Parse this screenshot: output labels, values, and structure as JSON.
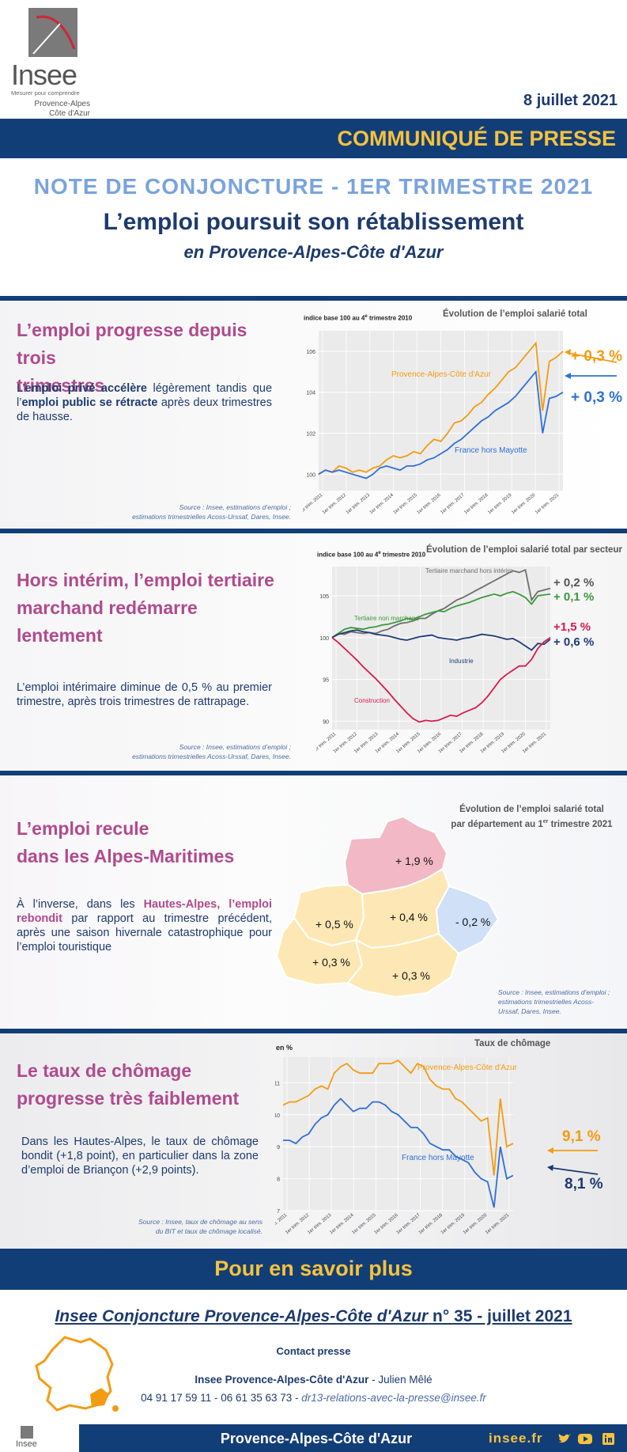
{
  "header": {
    "logo_word": "Insee",
    "logo_tagline": "Mesurer pour comprendre",
    "logo_region_line1": "Provence-Alpes",
    "logo_region_line2": "Côte d'Azur",
    "date": "8 juillet 2021",
    "press_release": "COMMUNIQUÉ DE PRESSE",
    "note_title": "NOTE DE CONJONCTURE - 1ER TRIMESTRE 2021",
    "main_title": "L’emploi poursuit son rétablissement",
    "main_subtitle": "en Provence-Alpes-Côte d'Azur"
  },
  "colors": {
    "navy": "#123e78",
    "yellow": "#f6c23d",
    "orange": "#f39c12",
    "blue_line": "#2f6fd6",
    "pink_title": "#b04a8e"
  },
  "section1": {
    "title_line1": "L’emploi progresse depuis trois",
    "title_line2": "trimestres",
    "text_part1": "L’",
    "text_bold1": "emploi privé accélère",
    "text_part2": " légèrement tandis que l’",
    "text_bold2": "emploi public se rétracte",
    "text_part3": " après deux trimestres de hausse.",
    "source_line1": "Source : Insee, estimations d’emploi ;",
    "source_line2": "estimations trimestrielles Acoss-Urssaf, Dares, Insee."
  },
  "section2": {
    "title_line1": "Hors intérim, l’emploi tertiaire",
    "title_line2": "marchand redémarre",
    "title_line3": "lentement",
    "text": "L’emploi intérimaire diminue de 0,5 % au premier trimestre, après trois trimestres de rattrapage.",
    "source_line1": "Source : Insee, estimations d’emploi ;",
    "source_line2": "estimations trimestrielles Acoss-Urssaf, Dares, Insee."
  },
  "section3": {
    "title_line1": "L’emploi recule",
    "title_line2": "dans les Alpes-Maritimes",
    "text_part1": "À l’inverse, dans les ",
    "text_bold": "Hautes-Alpes, l’emploi rebondit",
    "text_part2": " par rapport au trimestre précédent, après une saison hivernale catastrophique pour l’emploi touristique",
    "map_title_line1": "Évolution de l’emploi salarié total",
    "map_title_line2": "par département au 1",
    "map_title_sup": "er",
    "map_title_line2b": " trimestre 2021",
    "labels": {
      "hautes_alpes": "+ 1,9 %",
      "vaucluse": "+ 0,5 %",
      "alpes_hp": "+ 0,4 %",
      "alpes_maritimes": "- 0,2 %",
      "bouches_du_rhone": "+ 0,3 %",
      "var": "+ 0,3 %"
    },
    "source_line1": "Source : Insee, estimations d’emploi ;",
    "source_line2": "estimations trimestrielles Acoss-",
    "source_line3": "Urssaf, Dares, Insee."
  },
  "section4": {
    "title_line1": "Le taux de chômage",
    "title_line2": "progresse très faiblement",
    "text": "Dans les Hautes-Alpes, le taux de chômage bondit (+1,8 point), en particulier dans la zone d’emploi de Briançon (+2,9 points).",
    "source_line1": "Source : Insee, taux de chômage au sens",
    "source_line2": "du BIT et taux de chômage localisé."
  },
  "tick_labels": [
    "1er trim. 2011",
    "1er trim. 2012",
    "1er trim. 2013",
    "1er trim. 2014",
    "1er trim. 2015",
    "1er trim. 2016",
    "1er trim. 2017",
    "1er trim. 2018",
    "1er trim. 2019",
    "1er trim. 2020",
    "1er trim. 2021"
  ],
  "chart_data": [
    {
      "type": "line",
      "title": "Évolution de l’emploi salarié total",
      "ylabel": "indice base 100 au 4e trimestre 2010",
      "ylim": [
        99.2,
        107.0
      ],
      "yticks": [
        100,
        102,
        104,
        106
      ],
      "series": [
        {
          "name": "Provence-Alpes-Côte d'Azur",
          "color": "#f39c12",
          "end_label": "+ 0,3 %",
          "values": [
            100.0,
            100.2,
            100.1,
            100.4,
            100.3,
            100.1,
            100.2,
            100.1,
            100.3,
            100.4,
            100.7,
            100.9,
            100.8,
            100.9,
            101.1,
            101.0,
            101.4,
            101.7,
            101.6,
            102.0,
            102.5,
            102.6,
            102.9,
            103.3,
            103.5,
            103.9,
            104.2,
            104.6,
            105.0,
            105.2,
            105.6,
            106.0,
            106.4,
            103.1,
            105.5,
            105.7,
            106.0
          ]
        },
        {
          "name": "France hors Mayotte",
          "color": "#2f6fd6",
          "end_label": "+ 0,3 %",
          "values": [
            100.0,
            100.2,
            100.1,
            100.2,
            100.1,
            100.0,
            99.9,
            99.8,
            100.0,
            100.3,
            100.4,
            100.3,
            100.2,
            100.4,
            100.4,
            100.5,
            100.7,
            100.8,
            101.0,
            101.2,
            101.5,
            101.7,
            102.0,
            102.3,
            102.6,
            102.8,
            103.1,
            103.3,
            103.5,
            103.8,
            104.2,
            104.6,
            105.0,
            102.0,
            103.7,
            103.8,
            104.0
          ]
        }
      ]
    },
    {
      "type": "line",
      "title": "Évolution de l’emploi salarié total par secteur",
      "ylabel": "indice base 100 au 4e trimestre 2010",
      "ylim": [
        89.0,
        108.5
      ],
      "yticks": [
        90,
        95,
        100,
        105
      ],
      "series": [
        {
          "name": "Tertiaire marchand hors intérim",
          "color": "#6e6e6e",
          "end_label": "+ 0,2 %",
          "values": [
            100.0,
            100.5,
            100.4,
            100.7,
            100.6,
            100.5,
            100.6,
            100.5,
            100.8,
            101.0,
            101.4,
            101.7,
            101.8,
            102.0,
            102.3,
            102.3,
            102.8,
            103.2,
            103.5,
            104.0,
            104.5,
            104.8,
            105.2,
            105.6,
            106.0,
            106.4,
            106.8,
            107.2,
            107.6,
            108.0,
            107.8,
            108.1,
            104.5,
            105.5,
            105.7,
            105.9
          ]
        },
        {
          "name": "Tertiaire non marchand",
          "color": "#3a9a3a",
          "end_label": "+ 0,1 %",
          "values": [
            100.0,
            100.5,
            101.0,
            101.2,
            101.1,
            101.0,
            101.2,
            101.3,
            101.5,
            101.6,
            101.8,
            102.0,
            102.3,
            102.2,
            102.5,
            102.8,
            103.0,
            103.2,
            103.1,
            103.5,
            103.8,
            104.0,
            104.2,
            104.5,
            104.8,
            105.0,
            105.2,
            105.0,
            105.3,
            105.5,
            105.2,
            104.8,
            104.0,
            105.0,
            105.1,
            105.2
          ]
        },
        {
          "name": "Industrie",
          "color": "#1f3c78",
          "end_label": "+ 0,6 %",
          "values": [
            100.0,
            100.4,
            100.6,
            100.8,
            100.9,
            100.7,
            100.6,
            100.4,
            100.3,
            100.2,
            100.0,
            99.8,
            99.7,
            99.9,
            100.1,
            100.2,
            100.3,
            100.0,
            99.9,
            99.8,
            99.7,
            99.9,
            100.0,
            100.2,
            100.4,
            100.3,
            100.2,
            100.0,
            99.8,
            99.9,
            99.5,
            99.0,
            98.5,
            99.3,
            99.2,
            99.8
          ]
        },
        {
          "name": "Construction",
          "color": "#d81b4f",
          "end_label": "+1,5 %",
          "values": [
            100.0,
            99.4,
            98.7,
            98.0,
            97.3,
            96.5,
            95.8,
            95.1,
            94.3,
            93.5,
            92.6,
            91.8,
            91.0,
            90.3,
            89.9,
            90.1,
            90.0,
            90.1,
            90.4,
            90.7,
            90.6,
            91.0,
            91.3,
            91.6,
            92.2,
            93.0,
            94.0,
            95.0,
            95.6,
            96.1,
            96.6,
            96.6,
            97.4,
            98.7,
            99.5,
            100.0
          ]
        }
      ]
    },
    {
      "type": "line",
      "title": "Taux de chômage",
      "ylabel": "en %",
      "ylim": [
        7.0,
        11.8
      ],
      "yticks": [
        7,
        8,
        9,
        10,
        11
      ],
      "series": [
        {
          "name": "Provence-Alpes-Côte d'Azur",
          "color": "#f39c12",
          "end_label": "9,1 %",
          "values": [
            10.3,
            10.4,
            10.4,
            10.5,
            10.6,
            10.8,
            10.9,
            10.8,
            11.3,
            11.5,
            11.6,
            11.4,
            11.3,
            11.3,
            11.3,
            11.6,
            11.6,
            11.6,
            11.7,
            11.5,
            11.3,
            11.6,
            11.5,
            11.1,
            10.9,
            10.8,
            10.8,
            10.5,
            10.4,
            10.2,
            10.0,
            9.8,
            9.9,
            8.1,
            10.5,
            9.0,
            9.1
          ]
        },
        {
          "name": "France hors Mayotte",
          "color": "#2f6fd6",
          "end_label": "8,1 %",
          "values": [
            9.2,
            9.2,
            9.1,
            9.3,
            9.4,
            9.7,
            9.9,
            10.0,
            10.3,
            10.5,
            10.3,
            10.1,
            10.2,
            10.2,
            10.4,
            10.4,
            10.3,
            10.1,
            10.0,
            9.8,
            9.6,
            9.6,
            9.4,
            9.1,
            9.0,
            8.9,
            8.9,
            8.7,
            8.6,
            8.5,
            8.2,
            8.0,
            7.9,
            7.1,
            9.0,
            8.0,
            8.1
          ]
        }
      ]
    }
  ],
  "more": {
    "title": "Pour en savoir plus",
    "publication_italic": "Insee Conjoncture Provence-Alpes-Côte d'Azur",
    "publication_rest": " n° 35 - juillet 2021",
    "contact_heading": "Contact presse",
    "contact_org": "Insee Provence-Alpes-Côte d'Azur",
    "contact_name": " - Julien Mêlé",
    "contact_phones": "04 91 17 59 11 - 06 61 35 63 73 - ",
    "contact_email": "dr13-relations-avec-la-presse@insee.fr"
  },
  "footer": {
    "logo_word": "Insee",
    "region": "Provence-Alpes-Côte d'Azur",
    "site": "insee.fr",
    "icons": [
      "twitter-icon",
      "youtube-icon",
      "linkedin-icon"
    ]
  }
}
